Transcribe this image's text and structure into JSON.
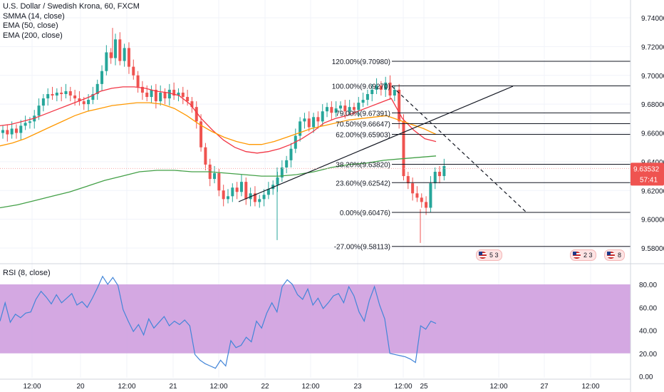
{
  "legend": {
    "symbol": "U.S. Dollar / Swedish Krona, 60, FXCM",
    "smma": "SMMA (14, close)",
    "ema50": "EMA (50, close)",
    "ema200": "EMA (200, close)"
  },
  "rsi_title": "RSI (8, close)",
  "price_tag": {
    "value": "9.63532",
    "countdown": "57:41"
  },
  "events": [
    {
      "label": "5",
      "suffix": "3"
    },
    {
      "label": "2",
      "suffix": "3"
    },
    {
      "label": "8",
      "suffix": ""
    }
  ],
  "colors": {
    "up": "#26a69a",
    "down": "#ef5350",
    "smma": "#f23645",
    "ema50": "#ff9800",
    "ema200": "#43a047",
    "rsi_line": "#4285d8",
    "rsi_band": "#cc99dd",
    "fib": "#131722"
  },
  "chart_data": {
    "type": "line",
    "title": "U.S. Dollar / Swedish Krona, 60, FXCM",
    "price_axis": {
      "min": 9.57,
      "max": 9.75,
      "ticks": [
        "9.74000",
        "9.72000",
        "9.70000",
        "9.68000",
        "9.66000",
        "9.64000",
        "9.62000",
        "9.60000",
        "9.58000"
      ]
    },
    "time_axis": [
      "12:00",
      "20",
      "12:00",
      "21",
      "12:00",
      "22",
      "12:00",
      "23",
      "12:00",
      "25",
      "12:00",
      "27",
      "12:00"
    ],
    "candles_close": [
      9.662,
      9.659,
      9.663,
      9.66,
      9.665,
      9.667,
      9.668,
      9.672,
      9.679,
      9.684,
      9.687,
      9.686,
      9.688,
      9.687,
      9.689,
      9.686,
      9.684,
      9.682,
      9.68,
      9.683,
      9.687,
      9.694,
      9.703,
      9.716,
      9.712,
      9.725,
      9.71,
      9.719,
      9.706,
      9.7,
      9.692,
      9.688,
      9.685,
      9.69,
      9.682,
      9.688,
      9.684,
      9.69,
      9.686,
      9.688,
      9.685,
      9.682,
      9.678,
      9.668,
      9.65,
      9.638,
      9.628,
      9.632,
      9.62,
      9.614,
      9.616,
      9.622,
      9.619,
      9.626,
      9.614,
      9.618,
      9.612,
      9.614,
      9.617,
      9.621,
      9.624,
      9.629,
      9.636,
      9.641,
      9.649,
      9.658,
      9.668,
      9.67,
      9.664,
      9.671,
      9.668,
      9.675,
      9.678,
      9.674,
      9.677,
      9.679,
      9.675,
      9.678,
      9.676,
      9.681,
      9.683,
      9.687,
      9.69,
      9.693,
      9.69,
      9.695,
      9.686,
      9.69,
      9.668,
      9.63,
      9.625,
      9.618,
      9.615,
      9.612,
      9.608,
      9.625,
      9.633,
      9.63,
      9.637
    ],
    "series": [
      {
        "name": "SMMA (14, close)",
        "values": [
          9.665,
          9.666,
          9.668,
          9.67,
          9.673,
          9.676,
          9.679,
          9.682,
          9.685,
          9.689,
          9.691,
          9.692,
          9.692,
          9.691,
          9.689,
          9.688,
          9.686,
          9.68,
          9.67,
          9.662,
          9.655,
          9.65,
          9.647,
          9.646,
          9.647,
          9.649,
          9.652,
          9.656,
          9.661,
          9.667,
          9.67,
          9.672,
          9.675,
          9.678,
          9.681,
          9.684,
          9.67,
          9.662,
          9.656,
          9.654
        ]
      },
      {
        "name": "EMA (50, close)",
        "values": [
          9.651,
          9.653,
          9.656,
          9.66,
          9.664,
          9.668,
          9.672,
          9.675,
          9.677,
          9.679,
          9.68,
          9.681,
          9.681,
          9.68,
          9.677,
          9.672,
          9.666,
          9.661,
          9.657,
          9.654,
          9.652,
          9.652,
          9.654,
          9.657,
          9.66,
          9.663,
          9.665,
          9.667,
          9.669,
          9.67,
          9.671,
          9.672,
          9.669,
          9.666,
          9.663,
          9.659
        ]
      },
      {
        "name": "EMA (200, close)",
        "values": [
          9.608,
          9.61,
          9.613,
          9.616,
          9.619,
          9.623,
          9.627,
          9.63,
          9.633,
          9.634,
          9.634,
          9.633,
          9.633,
          9.632,
          9.631,
          9.63,
          9.63,
          9.631,
          9.633,
          9.636,
          9.638,
          9.639,
          9.641,
          9.642,
          9.643,
          9.644
        ]
      }
    ],
    "fibonacci": [
      {
        "label": "120.00%(9.70980)",
        "level": 9.7098
      },
      {
        "label": "100.00%(9.69270)",
        "level": 9.6927
      },
      {
        "label": "79.00%(9.67391)",
        "level": 9.67391
      },
      {
        "label": "70.50%(9.66647)",
        "level": 9.66647
      },
      {
        "label": "62.00%(9.65903)",
        "level": 9.65903
      },
      {
        "label": "38.20%(9.63820)",
        "level": 9.6382
      },
      {
        "label": "23.60%(9.62542)",
        "level": 9.62542
      },
      {
        "label": "0.00%(9.60476)",
        "level": 9.60476
      },
      {
        "label": "-27.00%(9.58113)",
        "level": 9.58113
      }
    ],
    "rsi": {
      "name": "RSI (8, close)",
      "ylim": [
        0,
        100
      ],
      "ticks": [
        "80.00",
        "60.00",
        "40.00",
        "20.00",
        "0.00"
      ],
      "band": [
        20,
        80
      ],
      "values": [
        48,
        64,
        47,
        54,
        51,
        55,
        56,
        67,
        74,
        69,
        63,
        71,
        64,
        68,
        72,
        62,
        65,
        60,
        68,
        77,
        87,
        80,
        86,
        79,
        58,
        48,
        39,
        45,
        36,
        50,
        42,
        47,
        52,
        44,
        48,
        45,
        49,
        44,
        19,
        14,
        11,
        9,
        7,
        14,
        9,
        31,
        25,
        27,
        34,
        30,
        48,
        42,
        55,
        64,
        56,
        78,
        84,
        80,
        71,
        67,
        76,
        62,
        68,
        59,
        64,
        70,
        72,
        64,
        78,
        70,
        56,
        48,
        66,
        78,
        62,
        50,
        20,
        19,
        18,
        17,
        15,
        12,
        44,
        41,
        48,
        46
      ]
    }
  }
}
